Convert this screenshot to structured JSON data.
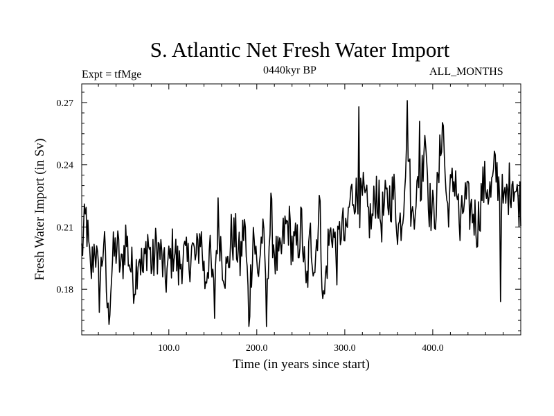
{
  "chart_data": {
    "type": "line",
    "title": "S. Atlantic Net Fresh Water Import",
    "experiment": "Expt = tfMge",
    "period": "0440kyr BP",
    "months": "ALL_MONTHS",
    "xlabel": "Time (in years since start)",
    "ylabel": "Fresh Water Import (in Sv)",
    "xlim": [
      1,
      500
    ],
    "ylim": [
      0.158,
      0.279
    ],
    "xticks": [
      100,
      200,
      300,
      400
    ],
    "xtick_labels": [
      "100.0",
      "200.0",
      "300.0",
      "400.0"
    ],
    "yticks": [
      0.18,
      0.21,
      0.24,
      0.27
    ],
    "ytick_labels": [
      "0.18",
      "0.21",
      "0.24",
      "0.27"
    ],
    "series": [
      {
        "name": "Fresh Water Import",
        "color": "#000000",
        "x_start": 1,
        "x_step": 5,
        "values": [
          0.198,
          0.215,
          0.186,
          0.203,
          0.179,
          0.205,
          0.165,
          0.194,
          0.201,
          0.188,
          0.206,
          0.192,
          0.184,
          0.199,
          0.187,
          0.205,
          0.19,
          0.201,
          0.196,
          0.185,
          0.193,
          0.201,
          0.189,
          0.197,
          0.191,
          0.2,
          0.193,
          0.208,
          0.184,
          0.198,
          0.177,
          0.214,
          0.195,
          0.187,
          0.205,
          0.204,
          0.193,
          0.213,
          0.168,
          0.21,
          0.186,
          0.207,
          0.185,
          0.215,
          0.196,
          0.192,
          0.207,
          0.212,
          0.199,
          0.201,
          0.211,
          0.178,
          0.205,
          0.192,
          0.222,
          0.172,
          0.201,
          0.21,
          0.194,
          0.212,
          0.202,
          0.223,
          0.228,
          0.219,
          0.224,
          0.216,
          0.212,
          0.23,
          0.213,
          0.22,
          0.224,
          0.226,
          0.209,
          0.218,
          0.262,
          0.212,
          0.228,
          0.223,
          0.259,
          0.222,
          0.215,
          0.228,
          0.264,
          0.219,
          0.227,
          0.236,
          0.206,
          0.224,
          0.219,
          0.217,
          0.21,
          0.228,
          0.231,
          0.225,
          0.238,
          0.23,
          0.219,
          0.228,
          0.235,
          0.223
        ]
      }
    ],
    "annotations": [
      {
        "x": 32,
        "y": 0.163
      },
      {
        "x": 152,
        "y": 0.166
      },
      {
        "x": 211,
        "y": 0.162
      },
      {
        "x": 316,
        "y": 0.268
      },
      {
        "x": 385,
        "y": 0.261
      },
      {
        "x": 477,
        "y": 0.174
      }
    ]
  }
}
